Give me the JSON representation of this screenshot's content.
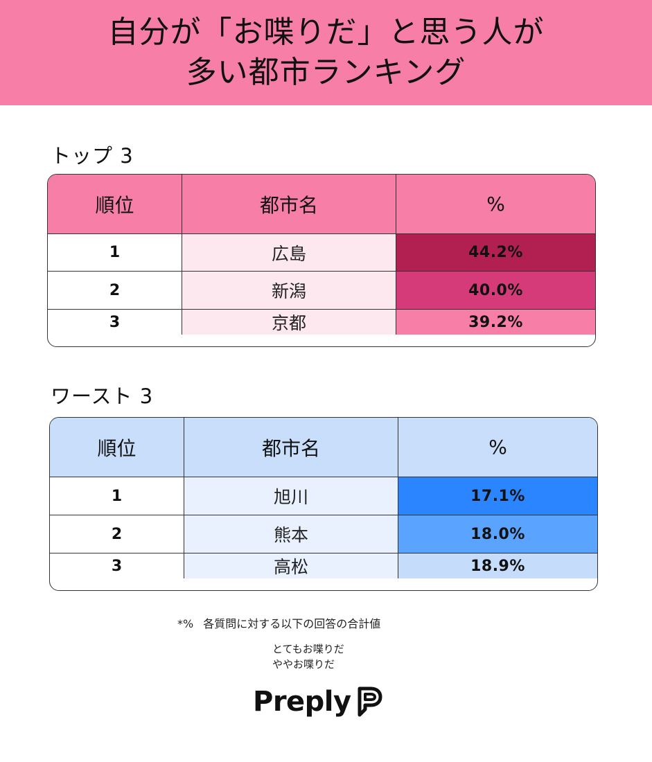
{
  "header": {
    "title_line1": "自分が「お喋りだ」と思う人が",
    "title_line2": "多い都市ランキング"
  },
  "top": {
    "title": "トップ 3",
    "columns": {
      "rank": "順位",
      "city": "都市名",
      "pct": "%"
    },
    "rows": [
      {
        "rank": "1",
        "city": "広島",
        "pct": "44.2%",
        "color": "#b12050"
      },
      {
        "rank": "2",
        "city": "新潟",
        "pct": "40.0%",
        "color": "#d63b79"
      },
      {
        "rank": "3",
        "city": "京都",
        "pct": "39.2%",
        "color": "#f77fa7"
      }
    ],
    "header_color": "#f77fa7",
    "city_color": "#fde8f0"
  },
  "worst": {
    "title": "ワースト 3",
    "columns": {
      "rank": "順位",
      "city": "都市名",
      "pct": "%"
    },
    "rows": [
      {
        "rank": "1",
        "city": "旭川",
        "pct": "17.1%",
        "color": "#2a85ff"
      },
      {
        "rank": "2",
        "city": "熊本",
        "pct": "18.0%",
        "color": "#5aa3ff"
      },
      {
        "rank": "3",
        "city": "高松",
        "pct": "18.9%",
        "color": "#c6dcfb"
      }
    ],
    "header_color": "#c9defb",
    "city_color": "#e9f1fe"
  },
  "footnote": {
    "mark": "*%",
    "text": "各質問に対する以下の回答の合計値",
    "answer1": "とてもお喋りだ",
    "answer2": "ややお喋りだ"
  },
  "logo": {
    "word": "Preply",
    "icon": "preply-logo-icon"
  }
}
